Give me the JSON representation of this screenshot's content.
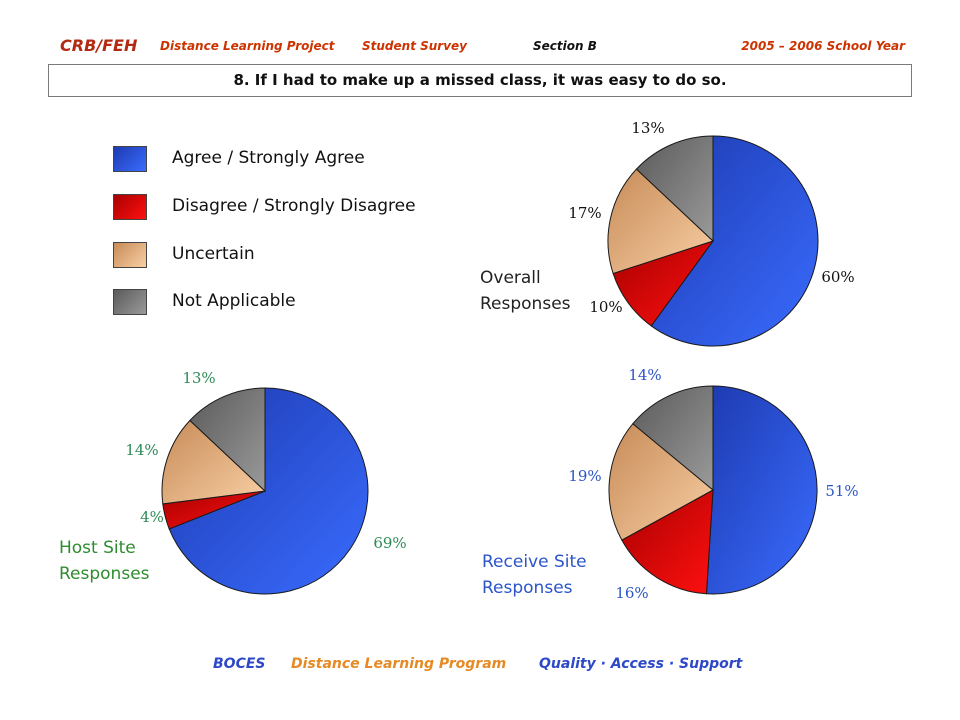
{
  "header": {
    "brand": "CRB/FEH",
    "project": "Distance Learning Project",
    "survey": "Student Survey",
    "section": "Section B",
    "year": "2005 – 2006 School Year"
  },
  "question": "8. If I had to make up a missed class, it was easy to do so.",
  "legend": [
    {
      "label": "Agree / Strongly Agree",
      "color_light": "#3a6cff",
      "color_dark": "#1d3ab0"
    },
    {
      "label": "Disagree / Strongly Disagree",
      "color_light": "#ff1010",
      "color_dark": "#a80000"
    },
    {
      "label": "Uncertain",
      "color_light": "#f8cfa4",
      "color_dark": "#c78b58"
    },
    {
      "label": "Not Applicable",
      "color_light": "#9a9a9a",
      "color_dark": "#5a5a5a"
    }
  ],
  "chart_data": [
    {
      "type": "pie",
      "title_lines": [
        "Overall",
        "Responses"
      ],
      "title_color": "#222222",
      "label_color": "#111111",
      "categories": [
        "Agree / Strongly Agree",
        "Disagree / Strongly Disagree",
        "Uncertain",
        "Not Applicable"
      ],
      "values": [
        60,
        10,
        17,
        13
      ],
      "labels": [
        "60%",
        "10%",
        "17%",
        "13%"
      ]
    },
    {
      "type": "pie",
      "title_lines": [
        "Host Site",
        "Responses"
      ],
      "title_color": "#2e8b2e",
      "label_color": "#2e8b57",
      "categories": [
        "Agree / Strongly Agree",
        "Disagree / Strongly Disagree",
        "Uncertain",
        "Not Applicable"
      ],
      "values": [
        69,
        4,
        14,
        13
      ],
      "labels": [
        "69%",
        "4%",
        "14%",
        "13%"
      ]
    },
    {
      "type": "pie",
      "title_lines": [
        "Receive Site",
        "Responses"
      ],
      "title_color": "#2b55c8",
      "label_color": "#2b55c8",
      "categories": [
        "Agree / Strongly Agree",
        "Disagree / Strongly Disagree",
        "Uncertain",
        "Not Applicable"
      ],
      "values": [
        51,
        16,
        19,
        14
      ],
      "labels": [
        "51%",
        "16%",
        "19%",
        "14%"
      ]
    }
  ],
  "footer": {
    "org": "BOCES",
    "program": "Distance  Learning  Program",
    "tagline": "Quality · Access · Support"
  }
}
